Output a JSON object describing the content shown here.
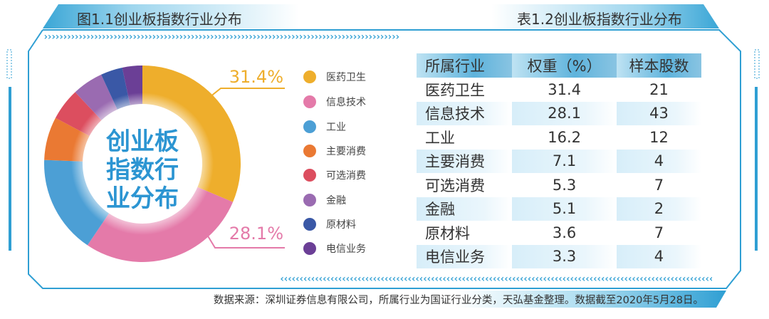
{
  "figure_title": "图1.1创业板指数行业分布",
  "table_title": "表1.2创业板指数行业分布",
  "chart_data": {
    "type": "pie",
    "variant": "donut",
    "center_label": [
      "创业板",
      "指数行",
      "业分布"
    ],
    "categories": [
      "医药卫生",
      "信息技术",
      "工业",
      "主要消费",
      "可选消费",
      "金融",
      "原材料",
      "电信业务"
    ],
    "values": [
      31.4,
      28.1,
      16.2,
      7.1,
      5.3,
      5.1,
      3.6,
      3.3
    ],
    "colors": [
      "#eeae2c",
      "#e47aa9",
      "#4c9fd5",
      "#ea7933",
      "#dc4e5f",
      "#9a6bb1",
      "#3a58a6",
      "#6b3f96"
    ],
    "annotations": [
      "31.4%",
      "28.1%"
    ],
    "legend_position": "right"
  },
  "table": {
    "headers": [
      "所属行业",
      "权重（%）",
      "样本股数"
    ],
    "rows": [
      [
        "医药卫生",
        "31.4",
        "21"
      ],
      [
        "信息技术",
        "28.1",
        "43"
      ],
      [
        "工业",
        "16.2",
        "12"
      ],
      [
        "主要消费",
        "7.1",
        "4"
      ],
      [
        "可选消费",
        "5.3",
        "7"
      ],
      [
        "金融",
        "5.1",
        "2"
      ],
      [
        "原材料",
        "3.6",
        "7"
      ],
      [
        "电信业务",
        "3.3",
        "4"
      ]
    ]
  },
  "footer": "数据来源：深圳证券信息有限公司，所属行业为国证行业分类，天弘基金整理。数据截至2020年5月28日。"
}
